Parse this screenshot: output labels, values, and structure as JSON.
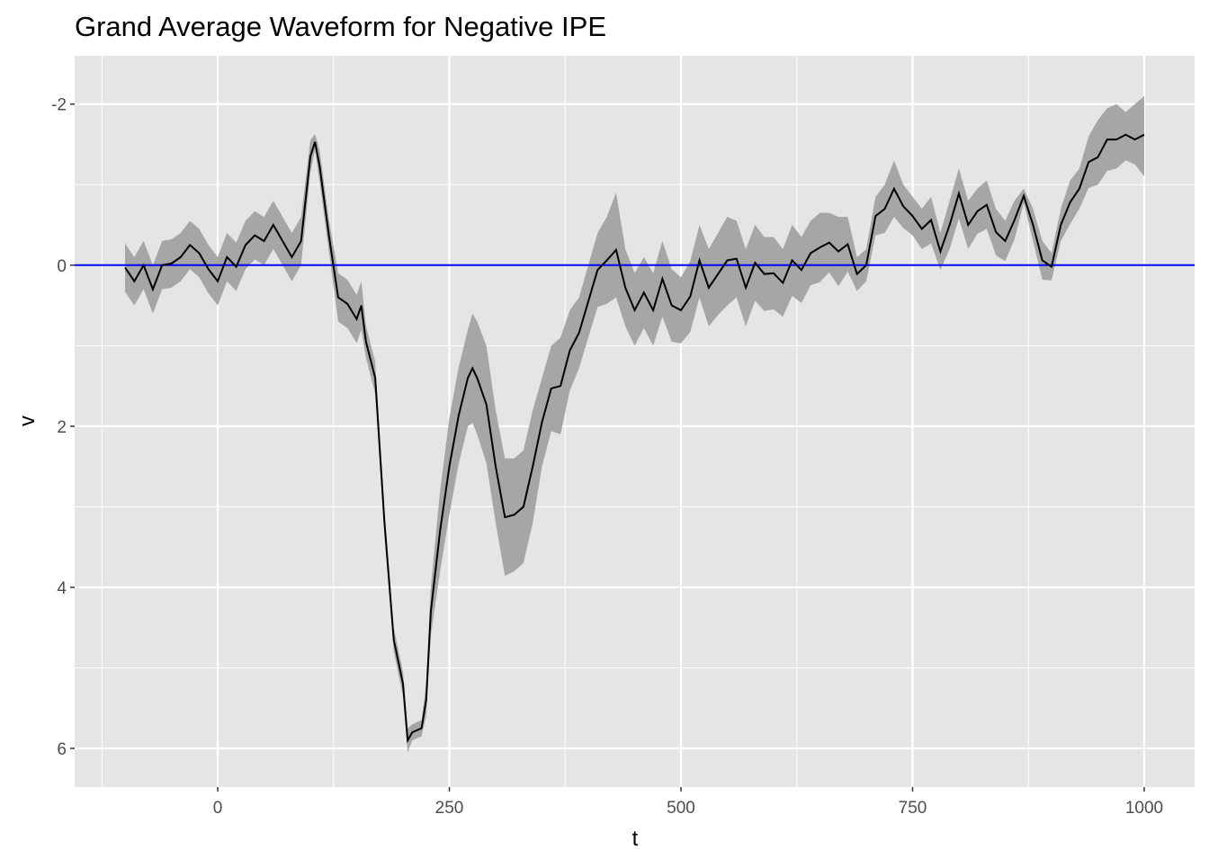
{
  "chart_data": {
    "type": "line",
    "title": "Grand Average Waveform for Negative IPE",
    "x_label": "t",
    "y_label": "v",
    "x": [
      -100,
      -90,
      -80,
      -70,
      -60,
      -50,
      -40,
      -30,
      -20,
      -10,
      0,
      10,
      20,
      30,
      40,
      50,
      60,
      70,
      80,
      90,
      100,
      105,
      110,
      120,
      130,
      140,
      150,
      155,
      160,
      170,
      180,
      190,
      200,
      205,
      210,
      220,
      225,
      230,
      240,
      250,
      260,
      270,
      275,
      280,
      290,
      300,
      310,
      320,
      330,
      340,
      350,
      360,
      370,
      380,
      390,
      400,
      410,
      420,
      430,
      440,
      450,
      460,
      470,
      480,
      490,
      500,
      510,
      520,
      530,
      540,
      550,
      560,
      570,
      580,
      590,
      600,
      610,
      620,
      630,
      640,
      650,
      660,
      670,
      680,
      690,
      700,
      710,
      720,
      730,
      740,
      750,
      760,
      770,
      780,
      790,
      800,
      810,
      820,
      830,
      840,
      850,
      860,
      870,
      880,
      890,
      900,
      910,
      920,
      930,
      940,
      950,
      960,
      970,
      980,
      990,
      1000
    ],
    "values": [
      0.03,
      0.2,
      0.0,
      0.3,
      0.0,
      -0.02,
      -0.1,
      -0.25,
      -0.15,
      0.05,
      0.2,
      -0.1,
      0.02,
      -0.25,
      -0.37,
      -0.3,
      -0.5,
      -0.3,
      -0.1,
      -0.3,
      -1.35,
      -1.53,
      -1.23,
      -0.37,
      0.4,
      0.48,
      0.67,
      0.5,
      0.95,
      1.4,
      3.2,
      4.65,
      5.2,
      5.9,
      5.8,
      5.75,
      5.4,
      4.3,
      3.3,
      2.5,
      1.87,
      1.4,
      1.28,
      1.4,
      1.73,
      2.5,
      3.13,
      3.1,
      3.0,
      2.5,
      1.95,
      1.53,
      1.5,
      1.06,
      0.84,
      0.45,
      0.06,
      -0.06,
      -0.19,
      0.28,
      0.56,
      0.34,
      0.56,
      0.17,
      0.5,
      0.56,
      0.39,
      -0.06,
      0.28,
      0.11,
      -0.06,
      -0.08,
      0.28,
      -0.03,
      0.11,
      0.1,
      0.22,
      -0.06,
      0.06,
      -0.15,
      -0.22,
      -0.28,
      -0.17,
      -0.26,
      0.11,
      0.0,
      -0.61,
      -0.7,
      -0.95,
      -0.73,
      -0.61,
      -0.45,
      -0.56,
      -0.17,
      -0.5,
      -0.89,
      -0.5,
      -0.67,
      -0.75,
      -0.41,
      -0.3,
      -0.56,
      -0.86,
      -0.5,
      -0.06,
      0.02,
      -0.5,
      -0.78,
      -0.95,
      -1.28,
      -1.34,
      -1.56,
      -1.56,
      -1.62,
      -1.56,
      -1.62
    ],
    "lower": [
      -0.27,
      -0.1,
      -0.3,
      0.0,
      -0.3,
      -0.32,
      -0.4,
      -0.55,
      -0.45,
      -0.25,
      -0.1,
      -0.4,
      -0.28,
      -0.55,
      -0.67,
      -0.6,
      -0.8,
      -0.6,
      -0.4,
      -0.6,
      -1.55,
      -1.63,
      -1.43,
      -0.57,
      0.1,
      0.18,
      0.37,
      0.2,
      0.75,
      1.2,
      3.05,
      4.5,
      5.05,
      5.75,
      5.7,
      5.65,
      5.2,
      4.0,
      2.8,
      1.9,
      1.27,
      0.8,
      0.6,
      0.7,
      1.0,
      1.8,
      2.4,
      2.4,
      2.3,
      1.8,
      1.4,
      1.0,
      0.9,
      0.56,
      0.4,
      0.0,
      -0.4,
      -0.6,
      -0.9,
      -0.2,
      0.1,
      -0.1,
      0.1,
      -0.3,
      0.05,
      0.15,
      -0.05,
      -0.5,
      -0.2,
      -0.4,
      -0.6,
      -0.55,
      -0.2,
      -0.5,
      -0.35,
      -0.35,
      -0.2,
      -0.5,
      -0.35,
      -0.55,
      -0.65,
      -0.65,
      -0.6,
      -0.6,
      -0.1,
      -0.2,
      -0.85,
      -1.0,
      -1.3,
      -1.0,
      -0.85,
      -0.7,
      -0.85,
      -0.4,
      -0.8,
      -1.2,
      -0.8,
      -0.95,
      -1.05,
      -0.7,
      -0.55,
      -0.8,
      -0.95,
      -0.7,
      -0.3,
      -0.15,
      -0.7,
      -1.05,
      -1.2,
      -1.6,
      -1.8,
      -1.95,
      -2.0,
      -1.9,
      -2.0,
      -2.1
    ],
    "upper": [
      0.33,
      0.5,
      0.3,
      0.6,
      0.3,
      0.28,
      0.2,
      0.05,
      0.15,
      0.35,
      0.5,
      0.2,
      0.32,
      0.05,
      -0.07,
      0.0,
      -0.2,
      0.0,
      0.2,
      0.0,
      -1.15,
      -1.43,
      -1.03,
      -0.17,
      0.7,
      0.78,
      0.97,
      0.8,
      1.15,
      1.6,
      3.35,
      4.8,
      5.35,
      6.05,
      5.9,
      5.85,
      5.6,
      4.6,
      3.8,
      3.1,
      2.47,
      2.0,
      1.96,
      2.1,
      2.46,
      3.2,
      3.86,
      3.8,
      3.7,
      3.2,
      2.5,
      2.06,
      2.1,
      1.56,
      1.28,
      0.9,
      0.52,
      0.48,
      0.4,
      0.76,
      1.0,
      0.78,
      1.0,
      0.64,
      0.95,
      0.97,
      0.83,
      0.4,
      0.76,
      0.62,
      0.5,
      0.4,
      0.76,
      0.44,
      0.57,
      0.55,
      0.64,
      0.38,
      0.47,
      0.25,
      0.21,
      0.09,
      0.26,
      0.08,
      0.32,
      0.2,
      -0.37,
      -0.4,
      -0.6,
      -0.46,
      -0.37,
      -0.2,
      -0.27,
      0.06,
      -0.2,
      -0.58,
      -0.2,
      -0.39,
      -0.45,
      -0.12,
      -0.05,
      -0.32,
      -0.77,
      -0.3,
      0.18,
      0.19,
      -0.3,
      -0.51,
      -0.7,
      -0.96,
      -1.0,
      -1.17,
      -1.2,
      -1.3,
      -1.25,
      -1.1
    ],
    "color": "#000000",
    "band_color": "#a6a6a6",
    "hline": 0,
    "hline_color": "#0000ff",
    "xlim": [
      -154.4,
      1054.4
    ],
    "ylim": [
      -2.6,
      6.48
    ],
    "y_reversed": true,
    "xticks": [
      0,
      250,
      500,
      750,
      1000
    ],
    "yticks": [
      -2,
      0,
      2,
      4,
      6
    ],
    "grid": true
  }
}
